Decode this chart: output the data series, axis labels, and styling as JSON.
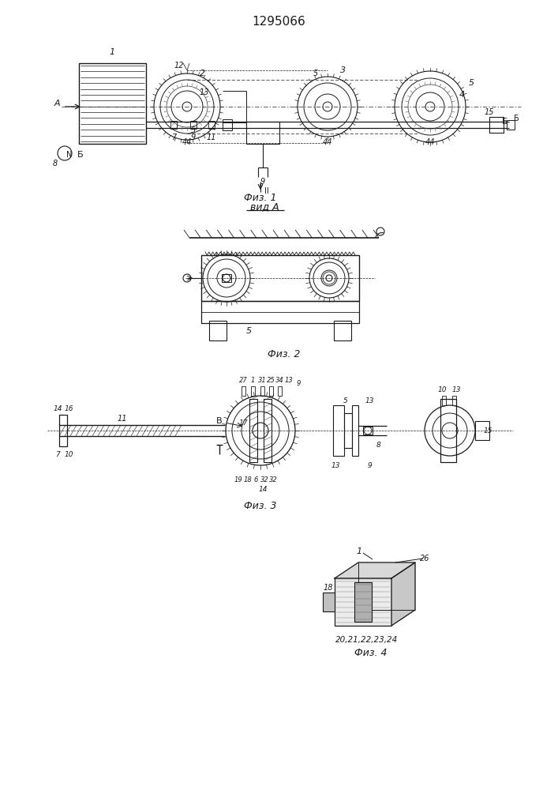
{
  "title": "1295066",
  "bg": "#ffffff",
  "lc": "#1a1a1a",
  "fig1_cap": "Физ. 1",
  "fig2_cap": "Физ. 2",
  "fig3_cap": "Физ. 3",
  "fig4_cap": "Физ. 4",
  "vid_a": "вид A"
}
